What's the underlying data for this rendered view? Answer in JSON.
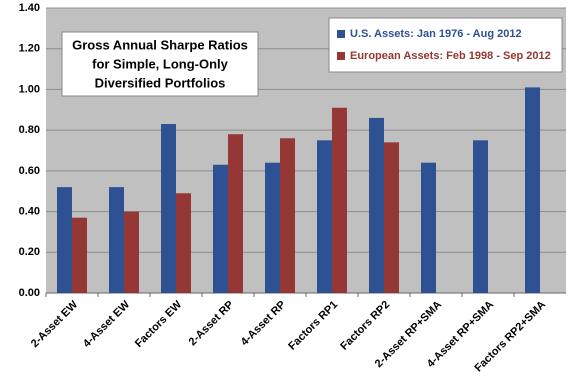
{
  "chart_data": {
    "type": "bar",
    "title": [
      "Gross Annual Sharpe Ratios",
      "for Simple, Long-Only",
      "Diversified Portfolios"
    ],
    "categories": [
      "2-Asset EW",
      "4-Asset EW",
      "Factors EW",
      "2-Asset RP",
      "4-Asset RP",
      "Factors RP1",
      "Factors RP2",
      "2-Asset RP+SMA",
      "4-Asset RP+SMA",
      "Factors RP2+SMA"
    ],
    "series": [
      {
        "name": "U.S. Assets: Jan 1976 - Aug 2012",
        "color": "#2e5193",
        "values": [
          0.52,
          0.52,
          0.83,
          0.63,
          0.64,
          0.75,
          0.86,
          0.64,
          0.75,
          1.01
        ]
      },
      {
        "name": "European Assets: Feb 1998 - Sep 2012",
        "color": "#953735",
        "values": [
          0.37,
          0.4,
          0.49,
          0.78,
          0.76,
          0.91,
          0.74,
          null,
          null,
          null
        ]
      }
    ],
    "ylim": [
      0,
      1.4
    ],
    "yticks": [
      {
        "value": 0,
        "label": "0.00"
      },
      {
        "value": 0.2,
        "label": "0.20"
      },
      {
        "value": 0.4,
        "label": "0.40"
      },
      {
        "value": 0.6,
        "label": "0.60"
      },
      {
        "value": 0.8,
        "label": "0.80"
      },
      {
        "value": 1.0,
        "label": "1.00"
      },
      {
        "value": 1.2,
        "label": "1.20"
      },
      {
        "value": 1.4,
        "label": "1.40"
      }
    ],
    "grid": true,
    "legend": "upper right"
  }
}
